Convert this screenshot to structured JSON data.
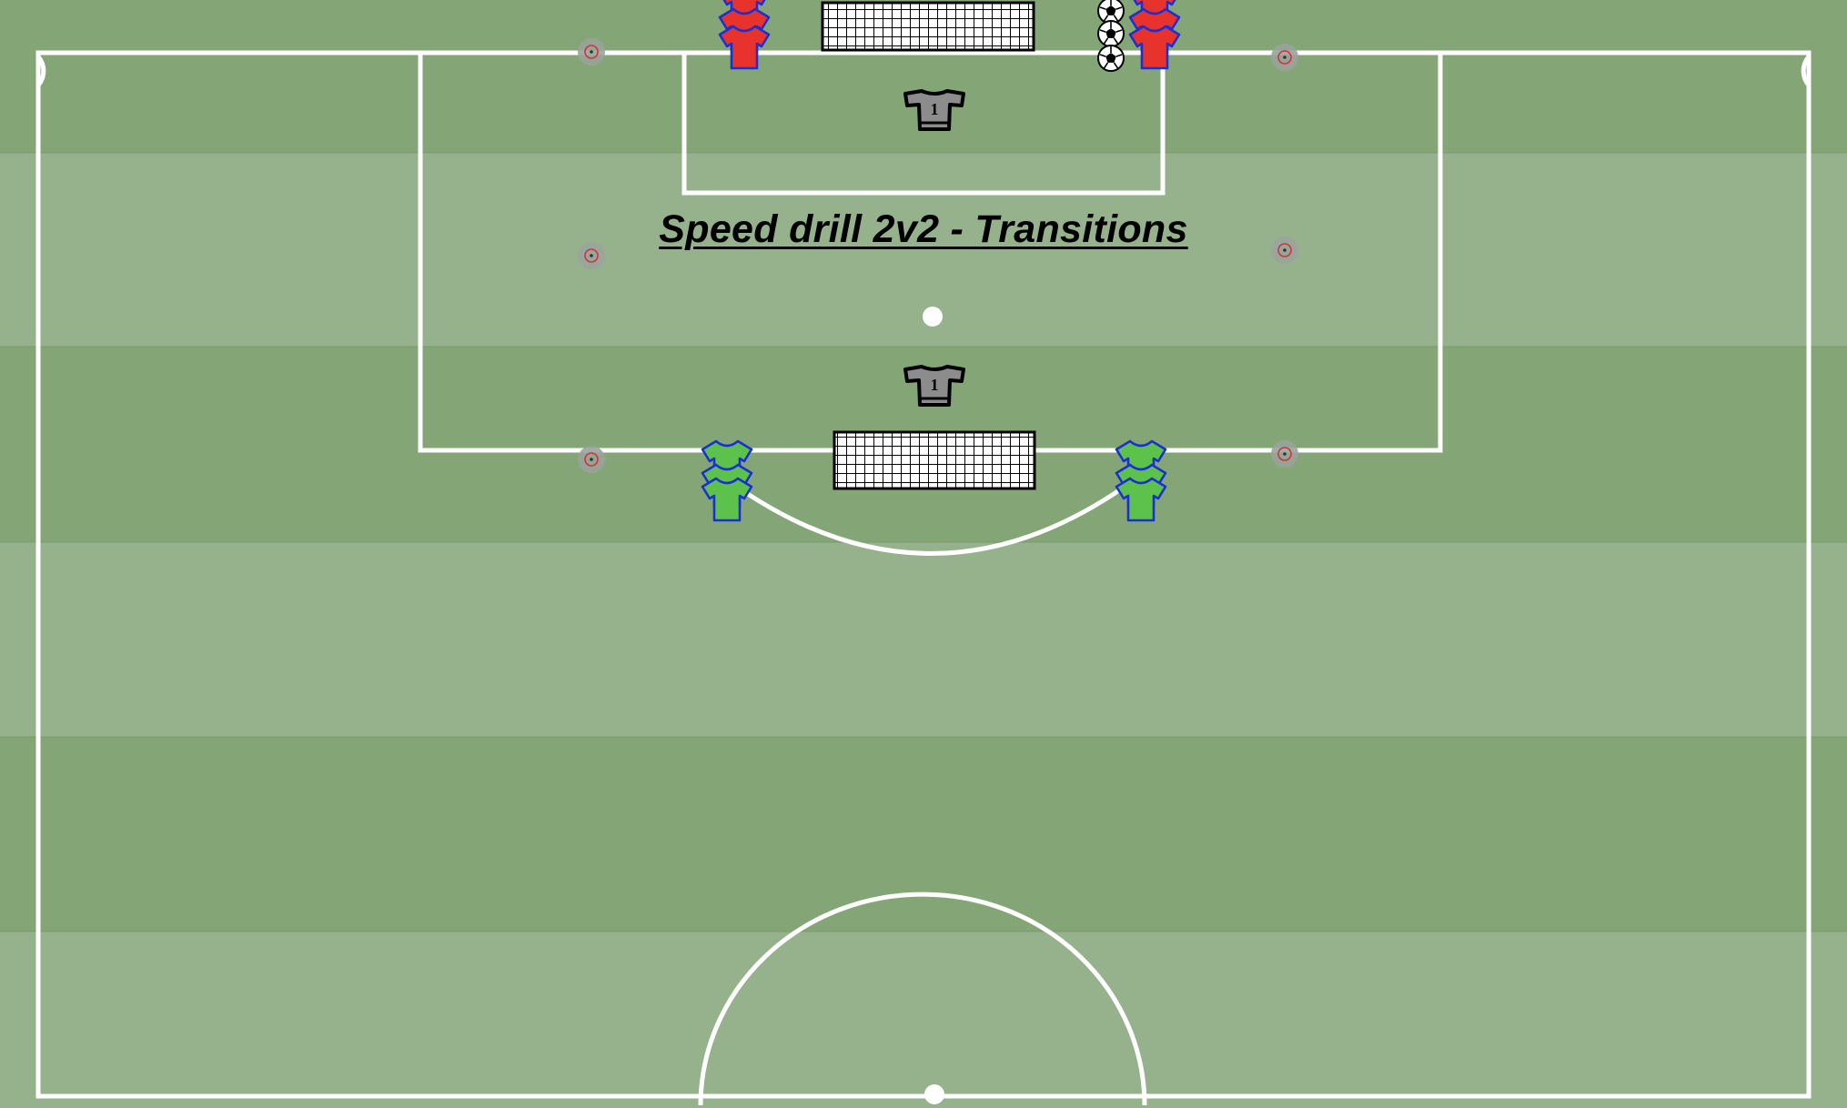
{
  "title": "Speed drill 2v2 - Transitions",
  "goalkeeper_number": "1",
  "colors": {
    "grass_dark": "#84a676",
    "grass_light": "#96b28c",
    "line": "#ffffff",
    "team_red": "#e8332d",
    "team_green": "#5cc24c",
    "jersey_outline": "#1a2fd4",
    "goalkeeper": "#8c8c8c",
    "cone_ring": "#d2343a"
  },
  "icons": [
    "red-jersey-icon",
    "green-jersey-icon",
    "goalkeeper-jersey-icon",
    "cone-icon",
    "soccer-ball-icon",
    "goal-net-icon"
  ]
}
